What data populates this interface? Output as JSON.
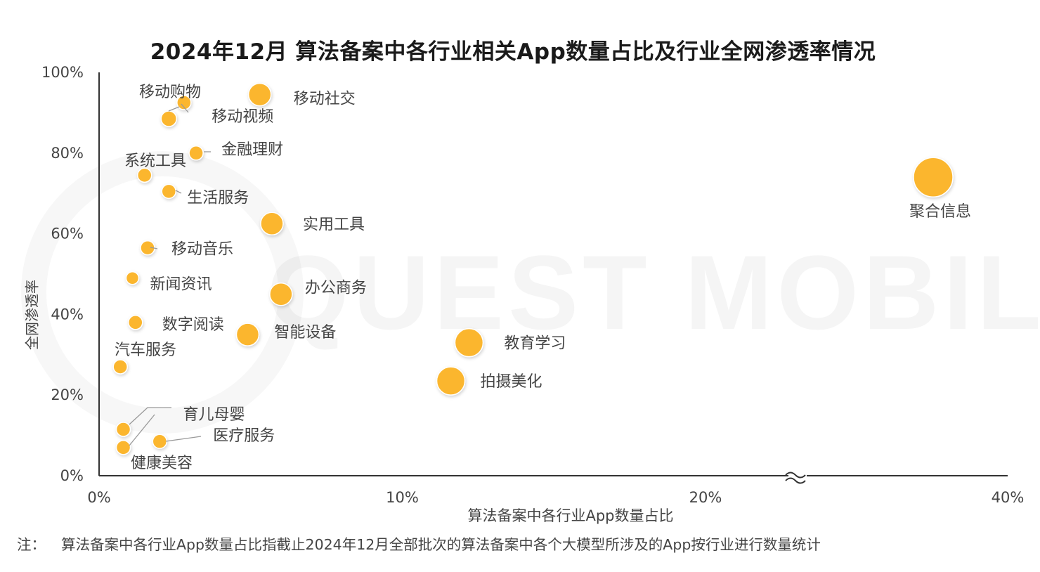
{
  "chart_data": {
    "type": "scatter",
    "title": "2024年12月 算法备案中各行业相关App数量占比及行业全网渗透率情况",
    "xlabel": "算法备案中各行业App数量占比",
    "ylabel": "全网渗透率",
    "x_ticks": [
      "0%",
      "10%",
      "20%",
      "40%"
    ],
    "y_ticks": [
      "0%",
      "20%",
      "40%",
      "60%",
      "80%",
      "100%"
    ],
    "x_axis_break": "20%-40%",
    "ylim": [
      0,
      100
    ],
    "marker_color": "#FBB62F",
    "points": [
      {
        "name": "移动社交",
        "x": 5.3,
        "y": 94.5,
        "size": 16
      },
      {
        "name": "移动购物",
        "x": 2.8,
        "y": 92.5,
        "size": 10
      },
      {
        "name": "移动视频",
        "x": 2.3,
        "y": 88.5,
        "size": 11
      },
      {
        "name": "金融理财",
        "x": 3.2,
        "y": 80.0,
        "size": 10
      },
      {
        "name": "系统工具",
        "x": 1.5,
        "y": 74.5,
        "size": 10
      },
      {
        "name": "生活服务",
        "x": 2.3,
        "y": 70.5,
        "size": 10
      },
      {
        "name": "实用工具",
        "x": 5.7,
        "y": 62.5,
        "size": 16
      },
      {
        "name": "移动音乐",
        "x": 1.6,
        "y": 56.5,
        "size": 10
      },
      {
        "name": "新闻资讯",
        "x": 1.1,
        "y": 49.0,
        "size": 9
      },
      {
        "name": "办公商务",
        "x": 6.0,
        "y": 45.0,
        "size": 16
      },
      {
        "name": "数字阅读",
        "x": 1.2,
        "y": 38.0,
        "size": 10
      },
      {
        "name": "智能设备",
        "x": 4.9,
        "y": 35.0,
        "size": 16
      },
      {
        "name": "教育学习",
        "x": 12.2,
        "y": 33.0,
        "size": 20
      },
      {
        "name": "汽车服务",
        "x": 0.7,
        "y": 27.0,
        "size": 10
      },
      {
        "name": "拍摄美化",
        "x": 11.6,
        "y": 23.5,
        "size": 20
      },
      {
        "name": "育儿母婴",
        "x": 0.8,
        "y": 11.5,
        "size": 10
      },
      {
        "name": "医疗服务",
        "x": 2.0,
        "y": 8.5,
        "size": 10
      },
      {
        "name": "健康美容",
        "x": 0.8,
        "y": 7.0,
        "size": 10
      },
      {
        "name": "聚合信息",
        "x": 38.5,
        "y": 74.0,
        "size": 28
      }
    ]
  },
  "note": {
    "prefix": "注：",
    "text": "算法备案中各行业App数量占比指截止2024年12月全部批次的算法备案中各个大模型所涉及的App按行业进行数量统计"
  },
  "watermark": "QUEST MOBILE"
}
